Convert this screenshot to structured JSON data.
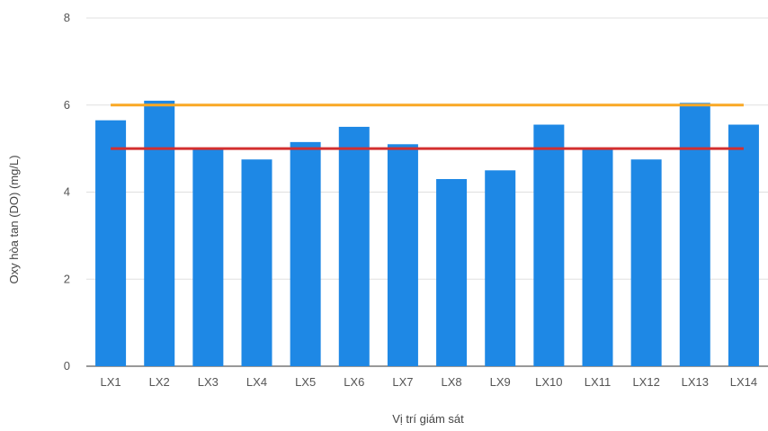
{
  "chart_data": {
    "type": "bar",
    "title": "",
    "xlabel": "Vị trí giám sát",
    "ylabel": "Oxy hòa tan (DO) (mg/L)",
    "ylim": [
      0,
      8
    ],
    "yticks": [
      0,
      2,
      4,
      6,
      8
    ],
    "grid": true,
    "categories": [
      "LX1",
      "LX2",
      "LX3",
      "LX4",
      "LX5",
      "LX6",
      "LX7",
      "LX8",
      "LX9",
      "LX10",
      "LX11",
      "LX12",
      "LX13",
      "LX14"
    ],
    "series": [
      {
        "type": "bar",
        "color": "#1e88e5",
        "values": [
          5.65,
          6.1,
          5.0,
          4.75,
          5.15,
          5.5,
          5.1,
          4.3,
          4.5,
          5.55,
          5.0,
          4.75,
          6.05,
          5.55
        ]
      },
      {
        "type": "line",
        "color": "#f9a825",
        "values": [
          6,
          6,
          6,
          6,
          6,
          6,
          6,
          6,
          6,
          6,
          6,
          6,
          6,
          6
        ]
      },
      {
        "type": "line",
        "color": "#d32f2f",
        "values": [
          5,
          5,
          5,
          5,
          5,
          5,
          5,
          5,
          5,
          5,
          5,
          5,
          5,
          5
        ]
      }
    ]
  }
}
